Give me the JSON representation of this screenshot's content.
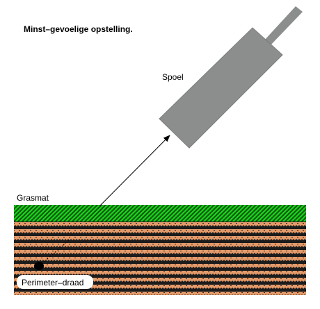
{
  "title": "Minst–gevoelige opstelling.",
  "labels": {
    "coil": "Spoel",
    "grass": "Grasmat",
    "wire": "Perimeter–draad"
  },
  "colors": {
    "grass_dark": "#0a5a0a",
    "grass_light": "#1ed21e",
    "soil": "#e39a6a",
    "soil_dark": "#1c1c1c",
    "coil_body": "#8c8e8d",
    "coil_edge": "#7a7c7b"
  }
}
